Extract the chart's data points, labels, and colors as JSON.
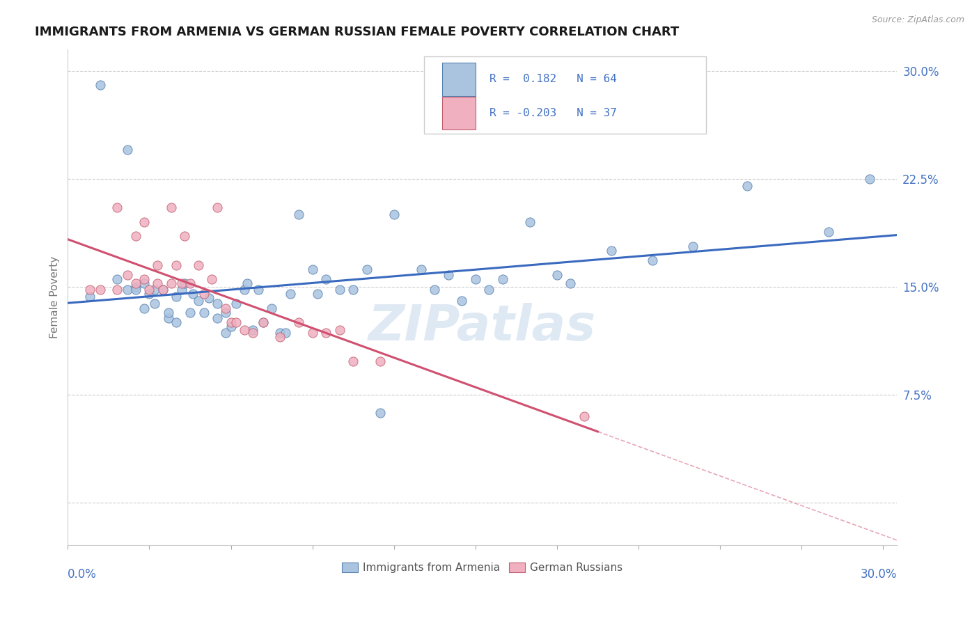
{
  "title": "IMMIGRANTS FROM ARMENIA VS GERMAN RUSSIAN FEMALE POVERTY CORRELATION CHART",
  "source": "Source: ZipAtlas.com",
  "ylabel": "Female Poverty",
  "yticks": [
    0.0,
    0.075,
    0.15,
    0.225,
    0.3
  ],
  "ytick_labels": [
    "",
    "7.5%",
    "15.0%",
    "22.5%",
    "30.0%"
  ],
  "xlim": [
    0.0,
    0.305
  ],
  "ylim": [
    -0.03,
    0.315
  ],
  "series1_label": "Immigrants from Armenia",
  "series1_color": "#aac4e0",
  "series1_edge": "#5580b0",
  "series1_line_color": "#3a6abf",
  "series2_label": "German Russians",
  "series2_color": "#f0b0c0",
  "series2_edge": "#c06070",
  "series2_line_color": "#d05070",
  "legend_color": "#4472c4",
  "watermark": "ZIPatlas",
  "background_color": "#ffffff",
  "grid_color": "#cccccc",
  "axis_label_color": "#4472c4",
  "series1_x": [
    0.008,
    0.012,
    0.018,
    0.022,
    0.022,
    0.025,
    0.025,
    0.028,
    0.028,
    0.03,
    0.032,
    0.032,
    0.035,
    0.037,
    0.037,
    0.04,
    0.04,
    0.042,
    0.043,
    0.045,
    0.046,
    0.048,
    0.05,
    0.052,
    0.055,
    0.055,
    0.058,
    0.058,
    0.06,
    0.062,
    0.065,
    0.066,
    0.068,
    0.07,
    0.072,
    0.075,
    0.078,
    0.08,
    0.082,
    0.085,
    0.09,
    0.092,
    0.095,
    0.1,
    0.105,
    0.11,
    0.115,
    0.12,
    0.13,
    0.135,
    0.14,
    0.145,
    0.15,
    0.155,
    0.16,
    0.17,
    0.18,
    0.185,
    0.2,
    0.215,
    0.23,
    0.25,
    0.28,
    0.295
  ],
  "series1_y": [
    0.143,
    0.29,
    0.155,
    0.245,
    0.148,
    0.15,
    0.148,
    0.135,
    0.152,
    0.145,
    0.148,
    0.138,
    0.148,
    0.128,
    0.132,
    0.125,
    0.143,
    0.148,
    0.152,
    0.132,
    0.145,
    0.14,
    0.132,
    0.142,
    0.138,
    0.128,
    0.132,
    0.118,
    0.122,
    0.138,
    0.148,
    0.152,
    0.12,
    0.148,
    0.125,
    0.135,
    0.118,
    0.118,
    0.145,
    0.2,
    0.162,
    0.145,
    0.155,
    0.148,
    0.148,
    0.162,
    0.062,
    0.2,
    0.162,
    0.148,
    0.158,
    0.14,
    0.155,
    0.148,
    0.155,
    0.195,
    0.158,
    0.152,
    0.175,
    0.168,
    0.178,
    0.22,
    0.188,
    0.225
  ],
  "series2_x": [
    0.008,
    0.012,
    0.018,
    0.018,
    0.022,
    0.025,
    0.025,
    0.028,
    0.028,
    0.03,
    0.033,
    0.033,
    0.035,
    0.038,
    0.038,
    0.04,
    0.042,
    0.043,
    0.045,
    0.048,
    0.05,
    0.053,
    0.055,
    0.058,
    0.06,
    0.062,
    0.065,
    0.068,
    0.072,
    0.078,
    0.085,
    0.09,
    0.095,
    0.1,
    0.105,
    0.115,
    0.19
  ],
  "series2_y": [
    0.148,
    0.148,
    0.205,
    0.148,
    0.158,
    0.185,
    0.152,
    0.155,
    0.195,
    0.148,
    0.152,
    0.165,
    0.148,
    0.205,
    0.152,
    0.165,
    0.152,
    0.185,
    0.152,
    0.165,
    0.145,
    0.155,
    0.205,
    0.135,
    0.125,
    0.125,
    0.12,
    0.118,
    0.125,
    0.115,
    0.125,
    0.118,
    0.118,
    0.12,
    0.098,
    0.098,
    0.06
  ],
  "series2_line_x_start": 0.0,
  "series2_line_x_solid_end": 0.195,
  "series2_line_x_dash_end": 0.305
}
